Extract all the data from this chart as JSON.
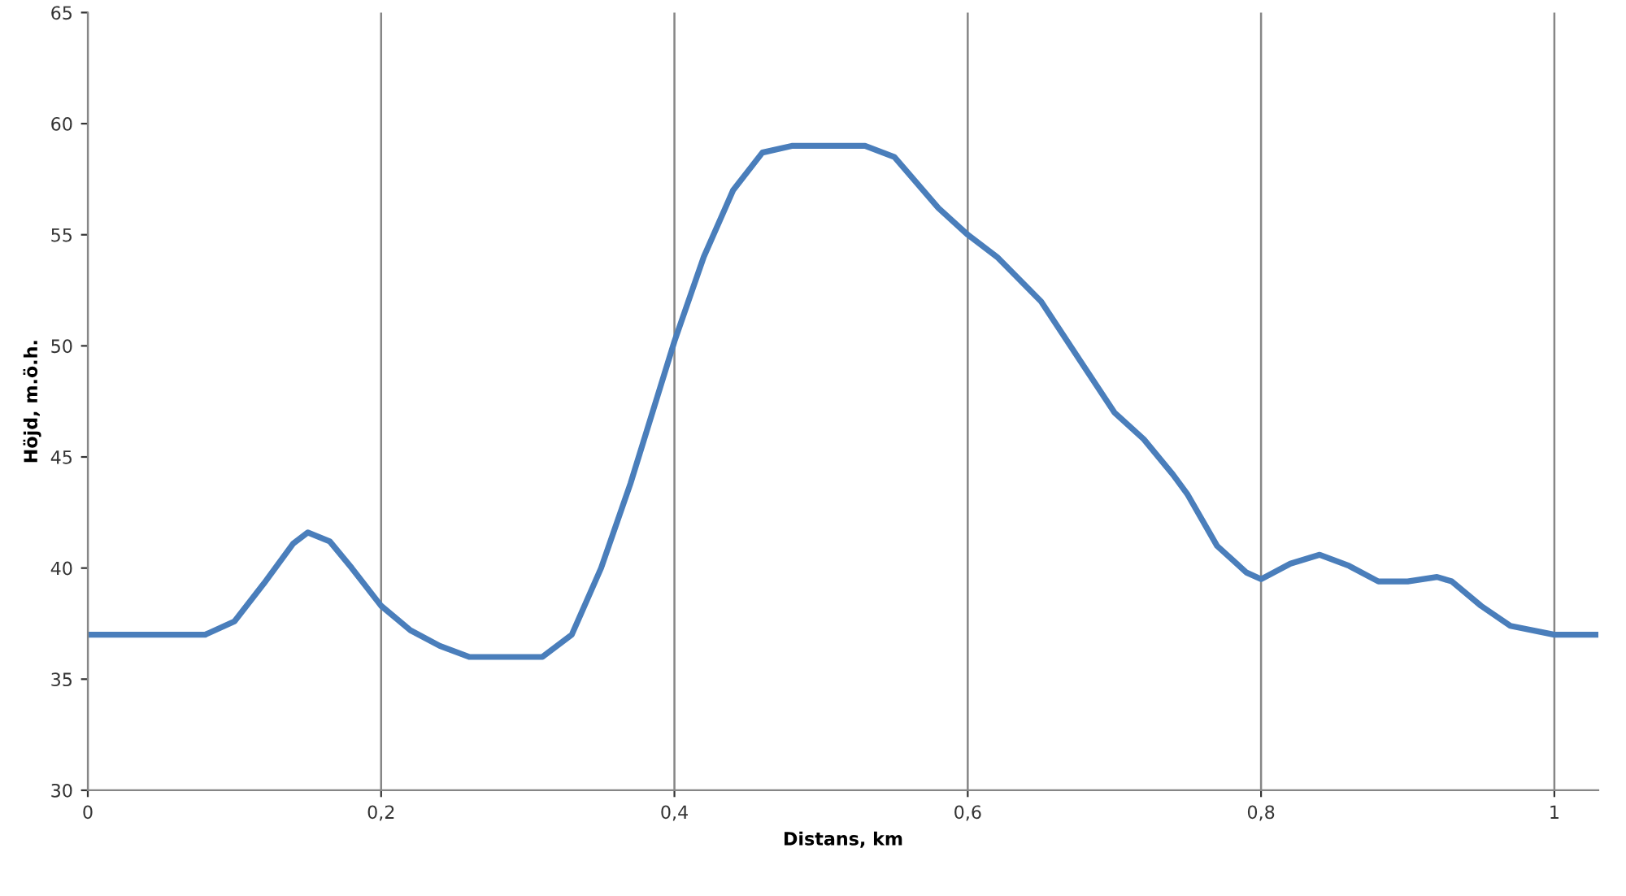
{
  "chart_data": {
    "type": "line",
    "xlabel": "Distans, km",
    "ylabel": "Höjd, m.ö.h.",
    "series": [
      {
        "color": "#4a7ebb",
        "x": [
          0,
          0.04,
          0.08,
          0.1,
          0.12,
          0.14,
          0.15,
          0.165,
          0.18,
          0.2,
          0.22,
          0.24,
          0.26,
          0.28,
          0.31,
          0.33,
          0.35,
          0.37,
          0.4,
          0.42,
          0.44,
          0.46,
          0.48,
          0.5,
          0.53,
          0.55,
          0.58,
          0.6,
          0.62,
          0.65,
          0.68,
          0.7,
          0.72,
          0.74,
          0.75,
          0.77,
          0.79,
          0.8,
          0.82,
          0.84,
          0.86,
          0.88,
          0.9,
          0.92,
          0.93,
          0.95,
          0.97,
          1.0,
          1.03
        ],
        "values": [
          37,
          37,
          37,
          37.6,
          39.3,
          41.1,
          41.6,
          41.2,
          40,
          38.3,
          37.2,
          36.5,
          36,
          36,
          36,
          37,
          40,
          43.8,
          50.2,
          54,
          57,
          58.7,
          59,
          59,
          59,
          58.5,
          56.2,
          55,
          54,
          52,
          49,
          47,
          45.8,
          44.2,
          43.3,
          41,
          39.8,
          39.5,
          40.2,
          40.6,
          40.1,
          39.4,
          39.4,
          39.6,
          39.4,
          38.3,
          37.4,
          37,
          37
        ]
      }
    ],
    "xlim": [
      0,
      1.03
    ],
    "ylim": [
      30,
      65
    ],
    "xticks": [
      0,
      {
        "value": 0.2,
        "label": "0,2"
      },
      {
        "value": 0.4,
        "label": "0,4"
      },
      {
        "value": 0.6,
        "label": "0,6"
      },
      {
        "value": 0.8,
        "label": "0,8"
      },
      1
    ],
    "yticks": [
      30,
      35,
      40,
      45,
      50,
      55,
      60,
      65
    ],
    "grid": "x",
    "marker": "none",
    "line_style": "solid"
  }
}
